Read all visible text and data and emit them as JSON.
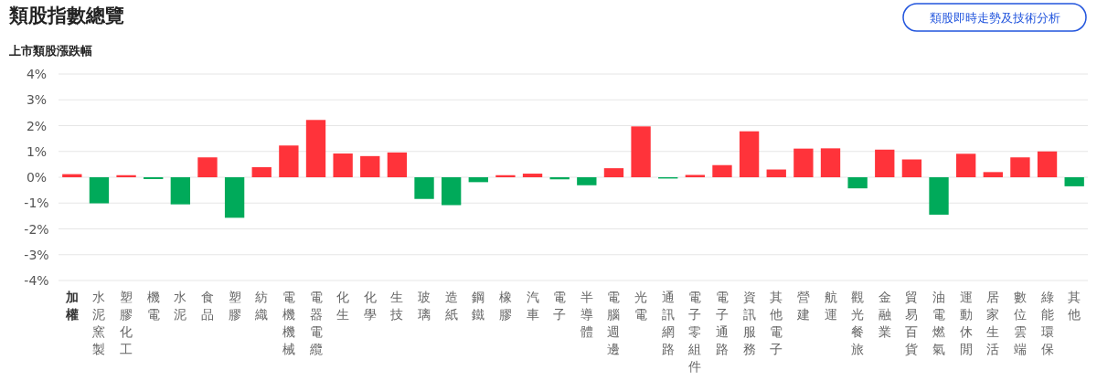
{
  "chart_data": {
    "type": "bar",
    "title": "類股指數總覽",
    "ylabel": "上市類股漲跌幅",
    "annotations": [
      "類股即時走勢及技術分析"
    ],
    "categories": [
      "加權",
      "水泥窯製",
      "塑膠化工",
      "機電",
      "水泥",
      "食品",
      "塑膠",
      "紡織",
      "電機機械",
      "電器電纜",
      "化生",
      "化學",
      "生技",
      "玻璃",
      "造紙",
      "鋼鐵",
      "橡膠",
      "汽車",
      "電子",
      "半導體",
      "電腦週邊",
      "光電",
      "通訊網路",
      "電子零組件",
      "電子通路",
      "資訊服務",
      "其他電子",
      "營建",
      "航運",
      "觀光餐旅",
      "金融業",
      "貿易百貨",
      "油電燃氣",
      "運動休閒",
      "居家生活",
      "數位雲端",
      "綠能環保",
      "其他"
    ],
    "values": [
      0.12,
      -1.01,
      0.08,
      -0.07,
      -1.05,
      0.77,
      -1.57,
      0.39,
      1.23,
      2.22,
      0.92,
      0.82,
      0.96,
      -0.84,
      -1.08,
      -0.19,
      0.08,
      0.14,
      -0.08,
      -0.31,
      0.35,
      1.97,
      -0.05,
      0.09,
      0.47,
      1.78,
      0.3,
      1.11,
      1.12,
      -0.43,
      1.07,
      0.69,
      -1.45,
      0.91,
      0.2,
      0.77,
      1.0,
      -0.35
    ],
    "colors": [
      "#ff333a",
      "#00aa5a",
      "#ff333a",
      "#00aa5a",
      "#00aa5a",
      "#ff333a",
      "#00aa5a",
      "#ff333a",
      "#ff333a",
      "#ff333a",
      "#ff333a",
      "#ff333a",
      "#ff333a",
      "#00aa5a",
      "#00aa5a",
      "#00aa5a",
      "#ff333a",
      "#ff333a",
      "#00aa5a",
      "#00aa5a",
      "#ff333a",
      "#ff333a",
      "#00aa5a",
      "#ff333a",
      "#ff333a",
      "#ff333a",
      "#ff333a",
      "#ff333a",
      "#ff333a",
      "#00aa5a",
      "#ff333a",
      "#ff333a",
      "#00aa5a",
      "#ff333a",
      "#ff333a",
      "#ff333a",
      "#ff333a",
      "#00aa5a"
    ],
    "ylim": [
      -4,
      4
    ],
    "yticks": [
      {
        "value": -4,
        "label": "-4%"
      },
      {
        "value": -3,
        "label": "-3%"
      },
      {
        "value": -2,
        "label": "-2%"
      },
      {
        "value": -1,
        "label": "-1%"
      },
      {
        "value": 0,
        "label": "0%"
      },
      {
        "value": 1,
        "label": "1%"
      },
      {
        "value": 2,
        "label": "2%"
      },
      {
        "value": 3,
        "label": "3%"
      },
      {
        "value": 4,
        "label": "4%"
      }
    ],
    "grid": "y"
  }
}
